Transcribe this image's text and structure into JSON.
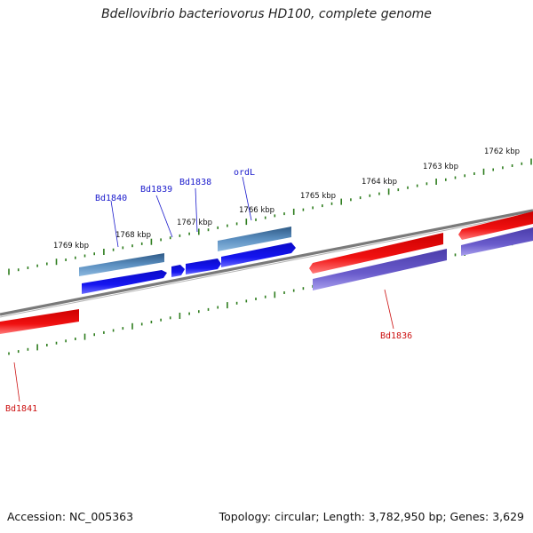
{
  "title": "Bdellovibrio bacteriovorus HD100, complete genome",
  "footer": {
    "accession": "Accession: NC_005363",
    "summary": "Topology: circular; Length: 3,782,950 bp; Genes: 3,629"
  },
  "colors": {
    "backbone": "#808080",
    "tick": "#2e7d1e",
    "forward_label": "#1a1acc",
    "reverse_label": "#cc1111"
  },
  "scale_ticks": [
    {
      "label": "1762 kbp"
    },
    {
      "label": "1763 kbp"
    },
    {
      "label": "1764 kbp"
    },
    {
      "label": "1765 kbp"
    },
    {
      "label": "1766 kbp"
    },
    {
      "label": "1767 kbp"
    },
    {
      "label": "1768 kbp"
    },
    {
      "label": "1769 kbp"
    }
  ],
  "genes": [
    {
      "name": "Bd1840",
      "strand": "forward",
      "color": "#1010e0"
    },
    {
      "name": "Bd1839",
      "strand": "forward",
      "color": "#1010e0"
    },
    {
      "name": "Bd1838",
      "strand": "forward",
      "color": "#1010e0"
    },
    {
      "name": "ordL",
      "strand": "forward",
      "color": "#1010e0"
    },
    {
      "name": "Bd1836",
      "strand": "reverse",
      "color": "#e81010"
    },
    {
      "name": "Bd1841",
      "strand": "reverse",
      "color": "#e81010"
    }
  ]
}
